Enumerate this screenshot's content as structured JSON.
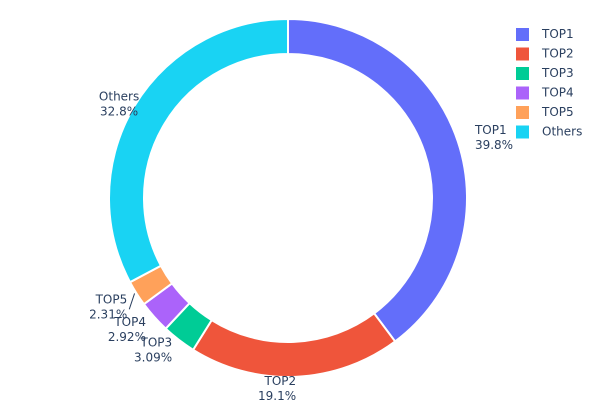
{
  "chart_data": {
    "type": "pie",
    "hole": true,
    "slices": [
      {
        "label": "TOP1",
        "value": 39.8,
        "text": "39.8%",
        "color": "#636efa"
      },
      {
        "label": "TOP2",
        "value": 19.1,
        "text": "19.1%",
        "color": "#ef553b"
      },
      {
        "label": "TOP3",
        "value": 3.09,
        "text": "3.09%",
        "color": "#00cc96"
      },
      {
        "label": "TOP4",
        "value": 2.92,
        "text": "2.92%",
        "color": "#ab63fa"
      },
      {
        "label": "TOP5",
        "value": 2.31,
        "text": "2.31%",
        "color": "#ffa15a"
      },
      {
        "label": "Others",
        "value": 32.8,
        "text": "32.8%",
        "color": "#19d3f3"
      }
    ],
    "legend_position": "top-right",
    "direction": "clockwise",
    "start": "top"
  }
}
